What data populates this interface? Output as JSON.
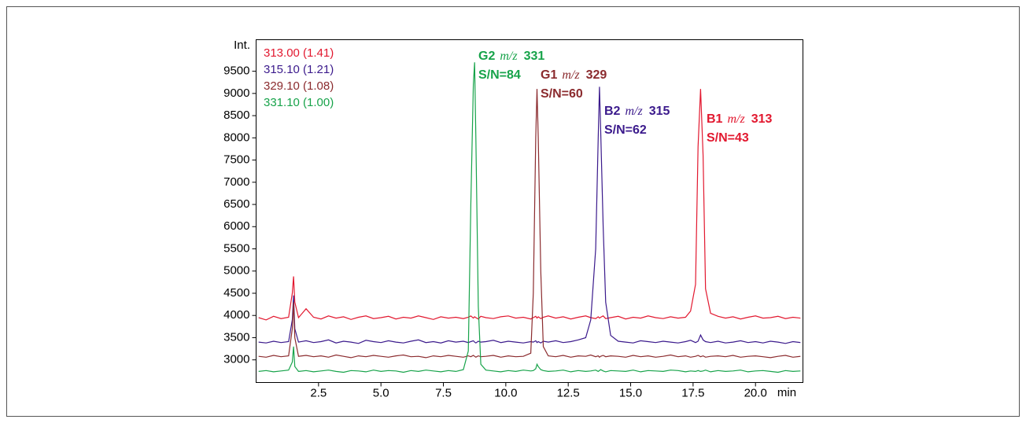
{
  "chart_data": {
    "type": "line",
    "y_label": "Int.",
    "x_label": "min",
    "xlim": [
      0,
      21.9
    ],
    "ylim": [
      2490,
      10210
    ],
    "xticks": [
      2.5,
      {
        "value": 5,
        "label": "5.0"
      },
      7.5,
      {
        "value": 10,
        "label": "10.0"
      },
      12.5,
      {
        "value": 15,
        "label": "15.0"
      },
      17.5,
      {
        "value": 20,
        "label": "20.0"
      }
    ],
    "yticks": [
      3000,
      3500,
      4000,
      4500,
      5000,
      5500,
      6000,
      6500,
      7000,
      7500,
      8000,
      8500,
      9000,
      9500
    ],
    "x": [
      0.1,
      0.4,
      0.7,
      1.0,
      1.3,
      1.45,
      1.5,
      1.55,
      1.7,
      2.0,
      2.3,
      2.6,
      2.9,
      3.2,
      3.5,
      3.8,
      4.1,
      4.4,
      4.7,
      5.0,
      5.3,
      5.6,
      5.9,
      6.2,
      6.5,
      6.8,
      7.1,
      7.4,
      7.7,
      8.0,
      8.3,
      8.5,
      8.6,
      8.7,
      8.75,
      8.8,
      8.9,
      9.0,
      9.2,
      9.5,
      9.8,
      10.1,
      10.4,
      10.7,
      11.0,
      11.1,
      11.2,
      11.25,
      11.3,
      11.4,
      11.5,
      11.7,
      12.0,
      12.3,
      12.6,
      12.9,
      13.2,
      13.4,
      13.6,
      13.7,
      13.75,
      13.8,
      13.9,
      14.0,
      14.2,
      14.5,
      14.8,
      15.1,
      15.4,
      15.7,
      16.0,
      16.3,
      16.6,
      16.9,
      17.2,
      17.4,
      17.6,
      17.7,
      17.8,
      17.9,
      18.0,
      18.2,
      18.5,
      18.8,
      19.1,
      19.4,
      19.7,
      20.0,
      20.3,
      20.6,
      20.9,
      21.2,
      21.5,
      21.8
    ],
    "series": [
      {
        "name": "313.00 (1.41)",
        "color": "#e2182f",
        "values": [
          3950,
          3900,
          3980,
          3930,
          3960,
          4500,
          4880,
          4300,
          3950,
          4150,
          3960,
          3920,
          3990,
          3940,
          3970,
          3910,
          3960,
          3990,
          3930,
          3950,
          3980,
          3920,
          3960,
          3940,
          3990,
          3950,
          3910,
          3970,
          3940,
          3960,
          3930,
          3960,
          3990,
          3940,
          3970,
          3950,
          3920,
          3980,
          3950,
          3930,
          3970,
          3990,
          3940,
          3960,
          3920,
          3950,
          3980,
          3940,
          3970,
          3930,
          3960,
          3990,
          3940,
          3970,
          3920,
          3960,
          3990,
          3950,
          3930,
          3970,
          3940,
          3960,
          3990,
          3930,
          3950,
          3980,
          3920,
          3960,
          3940,
          3990,
          3950,
          3930,
          3970,
          3940,
          3960,
          4100,
          4700,
          7800,
          9100,
          7600,
          4600,
          4050,
          3980,
          3940,
          3970,
          3920,
          3960,
          3990,
          3940,
          3950,
          3980,
          3930,
          3960,
          3940
        ]
      },
      {
        "name": "315.10 (1.21)",
        "color": "#3b1a8c",
        "values": [
          3400,
          3380,
          3420,
          3390,
          3410,
          3900,
          4450,
          3700,
          3400,
          3430,
          3390,
          3410,
          3450,
          3380,
          3420,
          3400,
          3370,
          3440,
          3410,
          3390,
          3430,
          3400,
          3380,
          3420,
          3450,
          3390,
          3410,
          3380,
          3430,
          3400,
          3420,
          3390,
          3410,
          3430,
          3400,
          3380,
          3420,
          3400,
          3410,
          3440,
          3390,
          3420,
          3400,
          3380,
          3410,
          3400,
          3430,
          3390,
          3410,
          3380,
          3420,
          3400,
          3430,
          3390,
          3410,
          3450,
          3500,
          3900,
          5500,
          8000,
          9150,
          8200,
          6000,
          4300,
          3550,
          3420,
          3400,
          3380,
          3430,
          3410,
          3390,
          3420,
          3400,
          3380,
          3410,
          3440,
          3390,
          3420,
          3560,
          3450,
          3410,
          3390,
          3420,
          3380,
          3400,
          3430,
          3390,
          3410,
          3380,
          3420,
          3400,
          3370,
          3410,
          3390
        ]
      },
      {
        "name": "329.10 (1.08)",
        "color": "#8b2b2e",
        "values": [
          3080,
          3060,
          3100,
          3070,
          3090,
          3700,
          4300,
          3500,
          3080,
          3100,
          3070,
          3090,
          3060,
          3110,
          3080,
          3050,
          3090,
          3070,
          3100,
          3080,
          3060,
          3090,
          3110,
          3070,
          3080,
          3050,
          3090,
          3070,
          3100,
          3080,
          3060,
          3090,
          3070,
          3100,
          3080,
          3060,
          3090,
          3070,
          3080,
          3100,
          3060,
          3090,
          3070,
          3080,
          3150,
          4500,
          8000,
          9100,
          8000,
          5000,
          3300,
          3090,
          3070,
          3100,
          3060,
          3090,
          3080,
          3110,
          3070,
          3090,
          3060,
          3080,
          3100,
          3070,
          3090,
          3080,
          3060,
          3100,
          3070,
          3090,
          3060,
          3080,
          3110,
          3070,
          3090,
          3060,
          3080,
          3100,
          3070,
          3090,
          3060,
          3080,
          3090,
          3070,
          3100,
          3060,
          3080,
          3090,
          3070,
          3050,
          3080,
          3100,
          3060,
          3080
        ]
      },
      {
        "name": "331.10 (1.00)",
        "color": "#17a34a",
        "values": [
          2740,
          2760,
          2730,
          2750,
          2770,
          2950,
          3300,
          2850,
          2740,
          2760,
          2730,
          2750,
          2770,
          2740,
          2720,
          2760,
          2750,
          2730,
          2770,
          2740,
          2760,
          2750,
          2720,
          2760,
          2740,
          2770,
          2750,
          2730,
          2760,
          2740,
          2780,
          3200,
          6500,
          9200,
          9700,
          8000,
          4200,
          2900,
          2770,
          2750,
          2730,
          2760,
          2740,
          2770,
          2750,
          2760,
          2800,
          2900,
          2850,
          2780,
          2760,
          2740,
          2750,
          2770,
          2730,
          2760,
          2740,
          2750,
          2770,
          2740,
          2760,
          2780,
          2750,
          2730,
          2760,
          2750,
          2740,
          2770,
          2730,
          2760,
          2750,
          2740,
          2770,
          2760,
          2730,
          2750,
          2740,
          2760,
          2740,
          2750,
          2770,
          2730,
          2760,
          2740,
          2750,
          2770,
          2730,
          2750,
          2760,
          2740,
          2720,
          2760,
          2740,
          2750
        ]
      }
    ],
    "annotations": [
      {
        "label": "G2",
        "mz": "m/z",
        "mass": "331",
        "sn": "S/N=84",
        "color": "#17a34a"
      },
      {
        "label": "G1",
        "mz": "m/z",
        "mass": "329",
        "sn": "S/N=60",
        "color": "#8b2b2e"
      },
      {
        "label": "B2",
        "mz": "m/z",
        "mass": "315",
        "sn": "S/N=62",
        "color": "#3b1a8c"
      },
      {
        "label": "B1",
        "mz": "m/z",
        "mass": "313",
        "sn": "S/N=43",
        "color": "#e2182f"
      }
    ]
  }
}
